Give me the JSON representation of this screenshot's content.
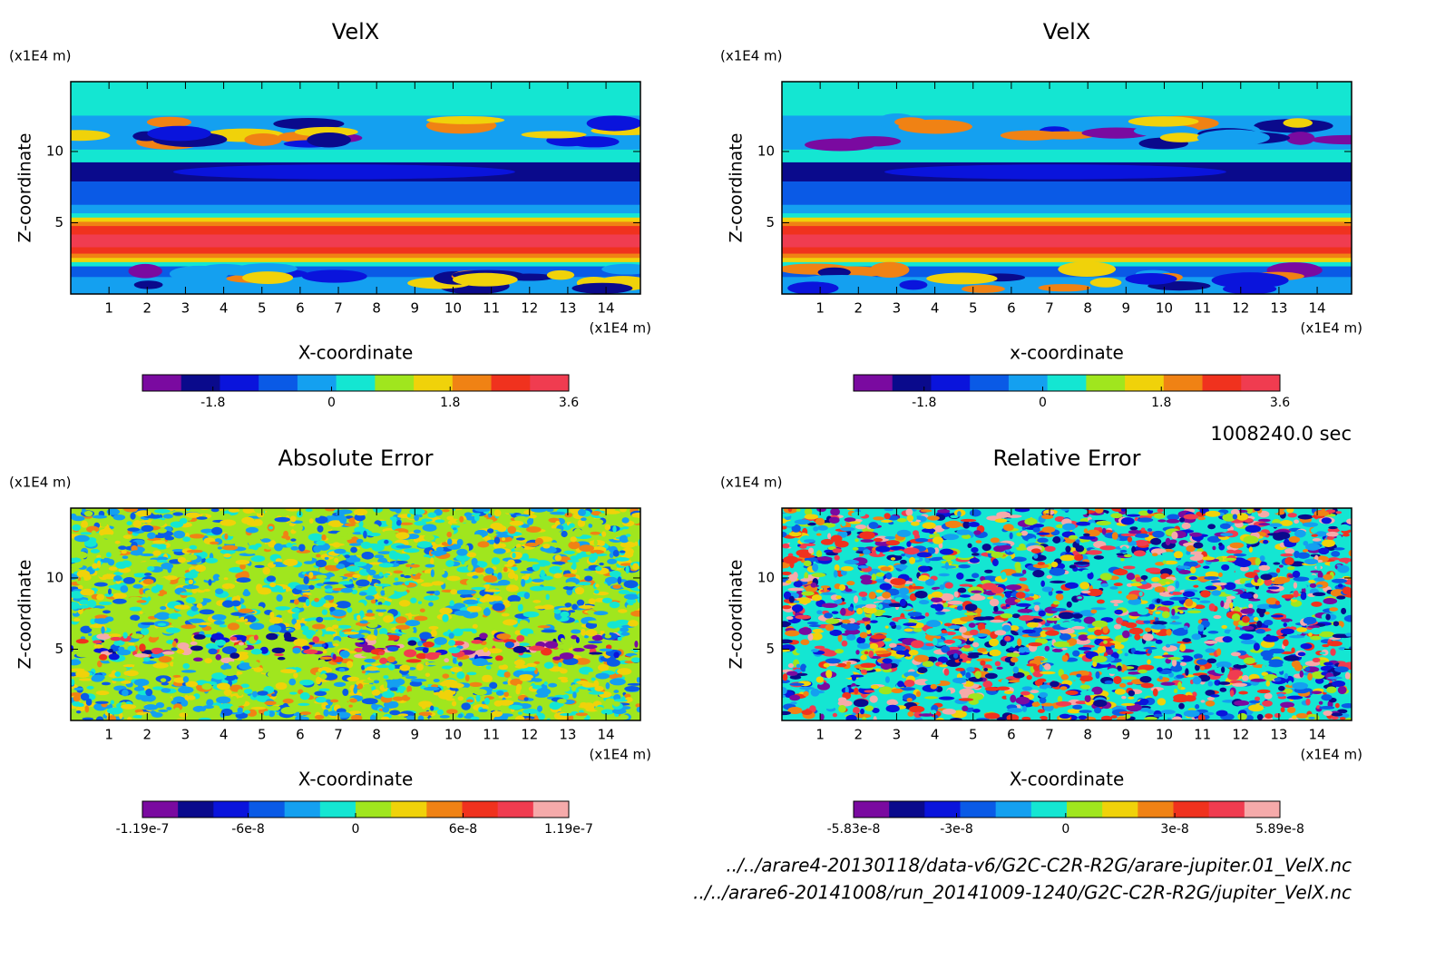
{
  "chart_data": [
    {
      "type": "contour",
      "title": "VelX",
      "xlabel": "X-coordinate",
      "ylabel": "Z-coordinate",
      "x_unit": "(x1E4 m)",
      "y_unit": "(x1E4 m)",
      "xlim": [
        0,
        14.9
      ],
      "ylim": [
        0,
        14.9
      ],
      "xticks": [
        1,
        2,
        3,
        4,
        5,
        6,
        7,
        8,
        9,
        10,
        11,
        12,
        13,
        14
      ],
      "yticks": [
        5,
        10
      ],
      "colorbar": {
        "lim": [
          -2.87,
          3.6
        ],
        "ticks": [
          -1.8,
          0,
          1.8,
          3.6
        ],
        "colors": [
          "#7a0aa0",
          "#0a0a8c",
          "#0a14dc",
          "#0a5ae6",
          "#14a0f0",
          "#14e6d2",
          "#a0e61e",
          "#f0d20a",
          "#f08214",
          "#f0321e",
          "#f03c50"
        ]
      }
    },
    {
      "type": "contour",
      "title": "VelX",
      "xlabel": "x-coordinate",
      "ylabel": "Z-coordinate",
      "x_unit": "(x1E4 m)",
      "y_unit": "(x1E4 m)",
      "xlim": [
        0,
        14.9
      ],
      "ylim": [
        0,
        14.9
      ],
      "xticks": [
        1,
        2,
        3,
        4,
        5,
        6,
        7,
        8,
        9,
        10,
        11,
        12,
        13,
        14
      ],
      "yticks": [
        5,
        10
      ],
      "colorbar": {
        "lim": [
          -2.87,
          3.6
        ],
        "ticks": [
          -1.8,
          0,
          1.8,
          3.6
        ],
        "colors": [
          "#7a0aa0",
          "#0a0a8c",
          "#0a14dc",
          "#0a5ae6",
          "#14a0f0",
          "#14e6d2",
          "#a0e61e",
          "#f0d20a",
          "#f08214",
          "#f0321e",
          "#f03c50"
        ]
      }
    },
    {
      "type": "contour-noise",
      "title": "Absolute Error",
      "xlabel": "X-coordinate",
      "ylabel": "Z-coordinate",
      "x_unit": "(x1E4 m)",
      "y_unit": "(x1E4 m)",
      "xlim": [
        0,
        14.9
      ],
      "ylim": [
        0,
        14.9
      ],
      "xticks": [
        1,
        2,
        3,
        4,
        5,
        6,
        7,
        8,
        9,
        10,
        11,
        12,
        13,
        14
      ],
      "yticks": [
        5,
        10
      ],
      "colorbar": {
        "lim": [
          -1.19e-07,
          1.19e-07
        ],
        "ticks": [
          -1.19e-07,
          -6e-08,
          0,
          6e-08,
          1.19e-07
        ],
        "colors": [
          "#7a0aa0",
          "#0a0a8c",
          "#0a14dc",
          "#0a5ae6",
          "#14a0f0",
          "#14e6d2",
          "#a0e61e",
          "#f0d20a",
          "#f08214",
          "#f0321e",
          "#f03c50",
          "#f5aaaa"
        ]
      }
    },
    {
      "type": "contour-noise",
      "title": "Relative Error",
      "xlabel": "X-coordinate",
      "ylabel": "Z-coordinate",
      "x_unit": "(x1E4 m)",
      "y_unit": "(x1E4 m)",
      "xlim": [
        0,
        14.9
      ],
      "ylim": [
        0,
        14.9
      ],
      "xticks": [
        1,
        2,
        3,
        4,
        5,
        6,
        7,
        8,
        9,
        10,
        11,
        12,
        13,
        14
      ],
      "yticks": [
        5,
        10
      ],
      "colorbar": {
        "lim": [
          -5.83e-08,
          5.89e-08
        ],
        "ticks": [
          -5.83e-08,
          -3e-08,
          0,
          3e-08,
          5.89e-08
        ],
        "colors": [
          "#7a0aa0",
          "#0a0a8c",
          "#0a14dc",
          "#0a5ae6",
          "#14a0f0",
          "#14e6d2",
          "#a0e61e",
          "#f0d20a",
          "#f08214",
          "#f0321e",
          "#f03c50",
          "#f5aaaa"
        ]
      }
    }
  ],
  "time_label": "1008240.0 sec",
  "files": [
    "../../arare4-20130118/data-v6/G2C-C2R-R2G/arare-jupiter.01_VelX.nc",
    "../../arare6-20141008/run_20141009-1240/G2C-C2R-R2G/jupiter_VelX.nc"
  ]
}
